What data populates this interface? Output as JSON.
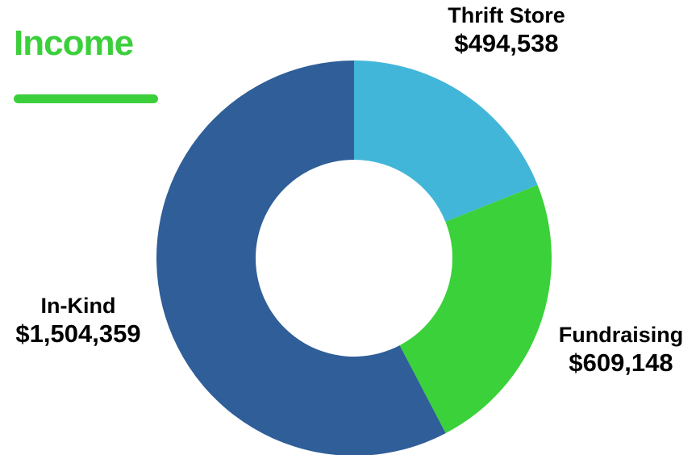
{
  "title": "Income",
  "colors": {
    "title": "#3ccf3c",
    "thrift_store": "#42b6d8",
    "fundraising": "#3ad13a",
    "in_kind": "#2f5e98"
  },
  "chart_data": {
    "type": "pie",
    "style": "donut",
    "title": "Income",
    "start": "12 o'clock",
    "direction": "clockwise",
    "slices": [
      {
        "label": "Thrift Store",
        "value": 494538,
        "value_text": "$494,538",
        "color": "#42b6d8"
      },
      {
        "label": "Fundraising",
        "value": 609148,
        "value_text": "$609,148",
        "color": "#3ad13a"
      },
      {
        "label": "In-Kind",
        "value": 1504359,
        "value_text": "$1,504,359",
        "color": "#2f5e98"
      }
    ]
  }
}
